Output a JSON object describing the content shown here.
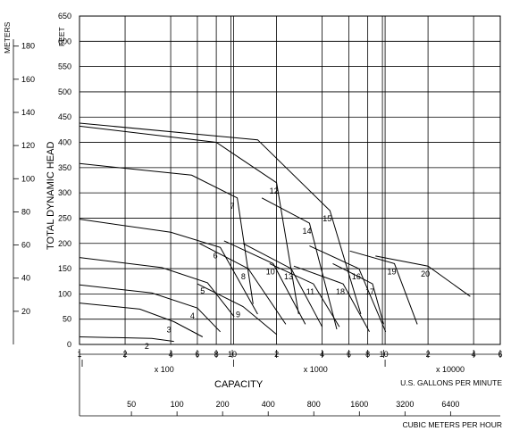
{
  "chart_data": {
    "type": "line",
    "scale": "log-log",
    "y_left": {
      "label": "FEET",
      "ylim": [
        0,
        650
      ],
      "ticks": [
        0,
        50,
        100,
        150,
        200,
        250,
        300,
        350,
        400,
        450,
        500,
        550,
        600,
        650
      ]
    },
    "y_outer": {
      "label": "METERS",
      "ticks": [
        20,
        40,
        60,
        80,
        100,
        120,
        140,
        160,
        180
      ]
    },
    "y_title": "TOTAL DYNAMIC HEAD",
    "x": {
      "title": "CAPACITY",
      "decades": [
        {
          "labels": [
            "1",
            "2",
            "4",
            "6",
            "8",
            "10"
          ],
          "multiplier": "x 100"
        },
        {
          "labels": [
            "2",
            "4",
            "6",
            "8",
            "10"
          ],
          "multiplier": "x 1000"
        },
        {
          "labels": [
            "2",
            "4",
            "6"
          ],
          "multiplier": "x 10000"
        }
      ],
      "unit_label": "U.S. GALLONS PER MINUTE",
      "xlim_gpm": [
        100,
        60000
      ]
    },
    "x_secondary": {
      "ticks": [
        "50",
        "100",
        "200",
        "400",
        "800",
        "1600",
        "3200",
        "6400"
      ],
      "unit_label": "CUBIC METERS PER HOUR"
    },
    "grid": true,
    "series": [
      {
        "name": "2",
        "x": [
          100,
          300,
          420
        ],
        "y": [
          15,
          12,
          6
        ]
      },
      {
        "name": "3",
        "x": [
          100,
          250,
          420,
          650
        ],
        "y": [
          82,
          70,
          45,
          15
        ]
      },
      {
        "name": "4",
        "x": [
          100,
          300,
          600,
          850
        ],
        "y": [
          118,
          102,
          72,
          25
        ]
      },
      {
        "name": "5",
        "x": [
          100,
          350,
          700,
          1050
        ],
        "y": [
          172,
          152,
          122,
          55
        ]
      },
      {
        "name": "6",
        "x": [
          100,
          400,
          850,
          1500
        ],
        "y": [
          248,
          222,
          192,
          60
        ]
      },
      {
        "name": "7",
        "x": [
          100,
          550,
          1100,
          1400
        ],
        "y": [
          358,
          335,
          290,
          80
        ]
      },
      {
        "name": "8",
        "x": [
          620,
          1300,
          2300
        ],
        "y": [
          200,
          150,
          40
        ]
      },
      {
        "name": "9",
        "x": [
          600,
          1200,
          2000
        ],
        "y": [
          120,
          75,
          20
        ]
      },
      {
        "name": "10",
        "x": [
          900,
          1900,
          3100
        ],
        "y": [
          205,
          160,
          40
        ]
      },
      {
        "name": "11",
        "x": [
          1800,
          3500,
          5200
        ],
        "y": [
          160,
          120,
          35
        ]
      },
      {
        "name": "12",
        "x": [
          100,
          800,
          2000,
          2800
        ],
        "y": [
          432,
          400,
          320,
          60
        ]
      },
      {
        "name": "13",
        "x": [
          1200,
          2500,
          4000
        ],
        "y": [
          200,
          150,
          35
        ]
      },
      {
        "name": "14",
        "x": [
          1600,
          3300,
          5000
        ],
        "y": [
          290,
          240,
          30
        ]
      },
      {
        "name": "15",
        "x": [
          100,
          1500,
          4500,
          7200
        ],
        "y": [
          438,
          405,
          265,
          60
        ]
      },
      {
        "name": "16",
        "x": [
          3300,
          7000,
          10500
        ],
        "y": [
          195,
          150,
          25
        ]
      },
      {
        "name": "17",
        "x": [
          4700,
          8600,
          10200
        ],
        "y": [
          160,
          120,
          40
        ]
      },
      {
        "name": "18",
        "x": [
          2600,
          5500,
          8200
        ],
        "y": [
          155,
          120,
          25
        ]
      },
      {
        "name": "19",
        "x": [
          6100,
          12000,
          17000
        ],
        "y": [
          185,
          160,
          40
        ]
      },
      {
        "name": "20",
        "x": [
          9000,
          20000,
          38000
        ],
        "y": [
          175,
          155,
          95
        ]
      }
    ]
  }
}
